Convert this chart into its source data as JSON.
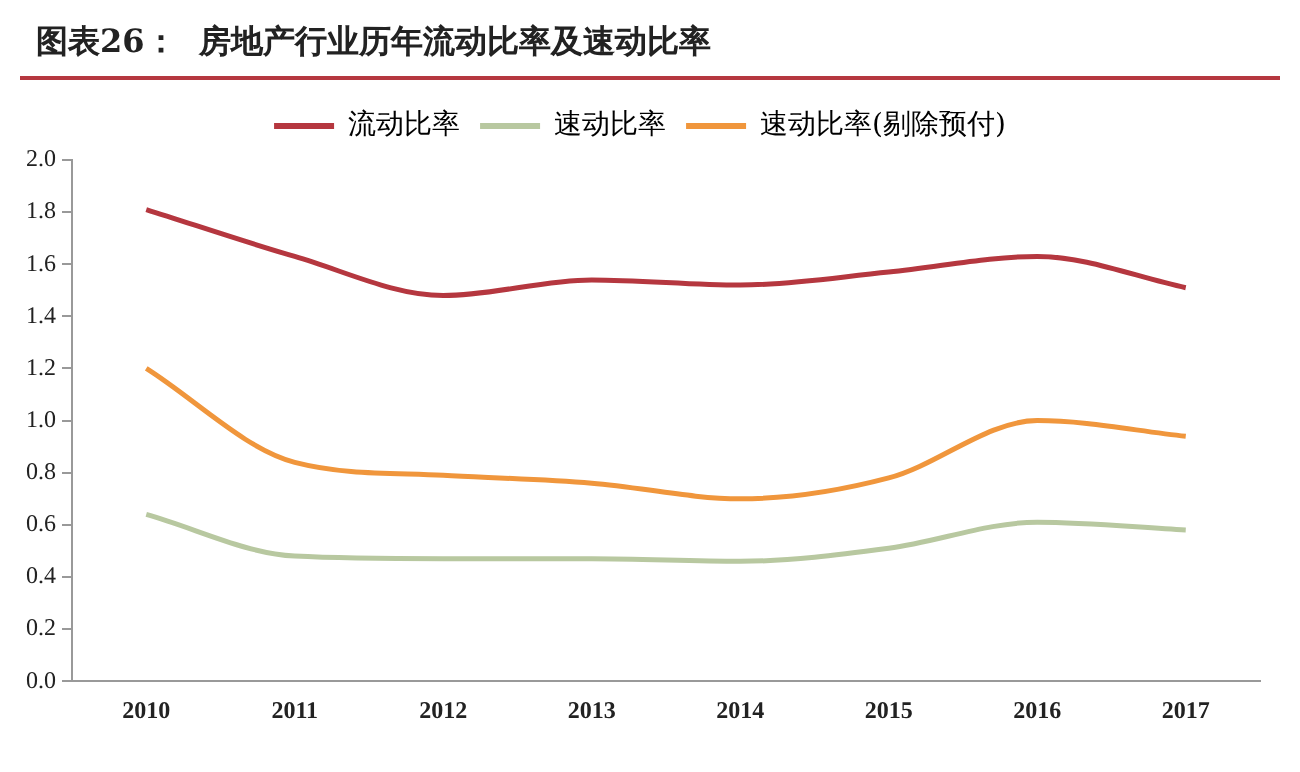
{
  "chart_data": {
    "type": "line",
    "title": "图表26：  房地产行业历年流动比率及速动比率",
    "categories": [
      "2010",
      "2011",
      "2012",
      "2013",
      "2014",
      "2015",
      "2016",
      "2017"
    ],
    "series": [
      {
        "name": "流动比率",
        "color": "#b5373f",
        "values": [
          1.81,
          1.63,
          1.48,
          1.54,
          1.52,
          1.57,
          1.63,
          1.51
        ]
      },
      {
        "name": "速动比率",
        "color": "#b8c8a0",
        "values": [
          0.64,
          0.48,
          0.47,
          0.47,
          0.46,
          0.51,
          0.61,
          0.58
        ]
      },
      {
        "name": "速动比率(剔除预付)",
        "color": "#f0963c",
        "values": [
          1.2,
          0.84,
          0.79,
          0.76,
          0.7,
          0.78,
          1.0,
          0.94
        ]
      }
    ],
    "ylim": [
      0,
      2
    ],
    "yticks": [
      {
        "value": 0,
        "label": "0.0"
      },
      0.2,
      0.4,
      0.6,
      0.8,
      {
        "value": 1,
        "label": "1.0"
      },
      1.2,
      1.4,
      1.6,
      1.8,
      {
        "value": 2,
        "label": "2.0"
      }
    ],
    "grid": false,
    "legend": "top",
    "marker": "none",
    "line_style": "solid"
  }
}
